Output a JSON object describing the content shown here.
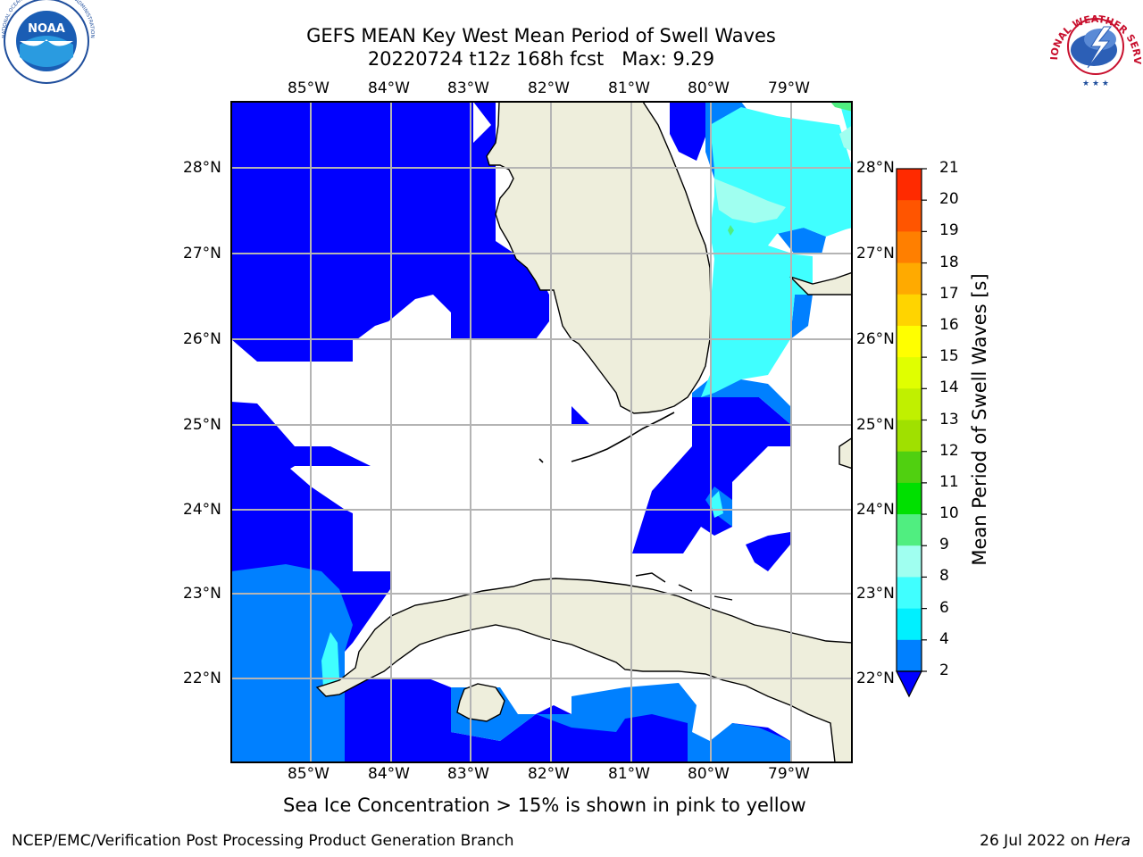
{
  "title": {
    "line1": "GEFS MEAN Key West Mean Period of Swell Waves",
    "line2": "20220724 t12z 168h fcst   Max: 9.29"
  },
  "map": {
    "lon_labels": [
      "85°W",
      "84°W",
      "83°W",
      "82°W",
      "81°W",
      "80°W",
      "79°W"
    ],
    "lat_labels": [
      "28°N",
      "27°N",
      "26°N",
      "25°N",
      "24°N",
      "23°N",
      "22°N"
    ],
    "land_color": "#eeeedc",
    "region": "Florida, Gulf of Mexico, Florida Straits and Cuba"
  },
  "colorbar": {
    "title": "Mean Period of Swell Waves [s]",
    "ticks": [
      "21",
      "20",
      "19",
      "18",
      "17",
      "16",
      "15",
      "14",
      "13",
      "12",
      "11",
      "10",
      "9",
      "8",
      "6",
      "4",
      "2"
    ],
    "colors": [
      "#ff0000",
      "#ff2a00",
      "#ff5500",
      "#ff7f00",
      "#ffaa00",
      "#ffd400",
      "#ffff00",
      "#e0ff00",
      "#c0f000",
      "#a0e000",
      "#50d010",
      "#00e000",
      "#50ee80",
      "#a0fff0",
      "#40ffff",
      "#00f0ff",
      "#0080ff",
      "#0000ff"
    ]
  },
  "note": "Sea Ice Concentration > 15% is shown in pink to yellow",
  "footer": {
    "left": "NCEP/EMC/Verification Post Processing Product Generation Branch",
    "date": "26 Jul 2022 on ",
    "host": "Hera"
  },
  "logos": {
    "noaa": "NOAA",
    "nws": "NATIONAL WEATHER SERVICE"
  }
}
